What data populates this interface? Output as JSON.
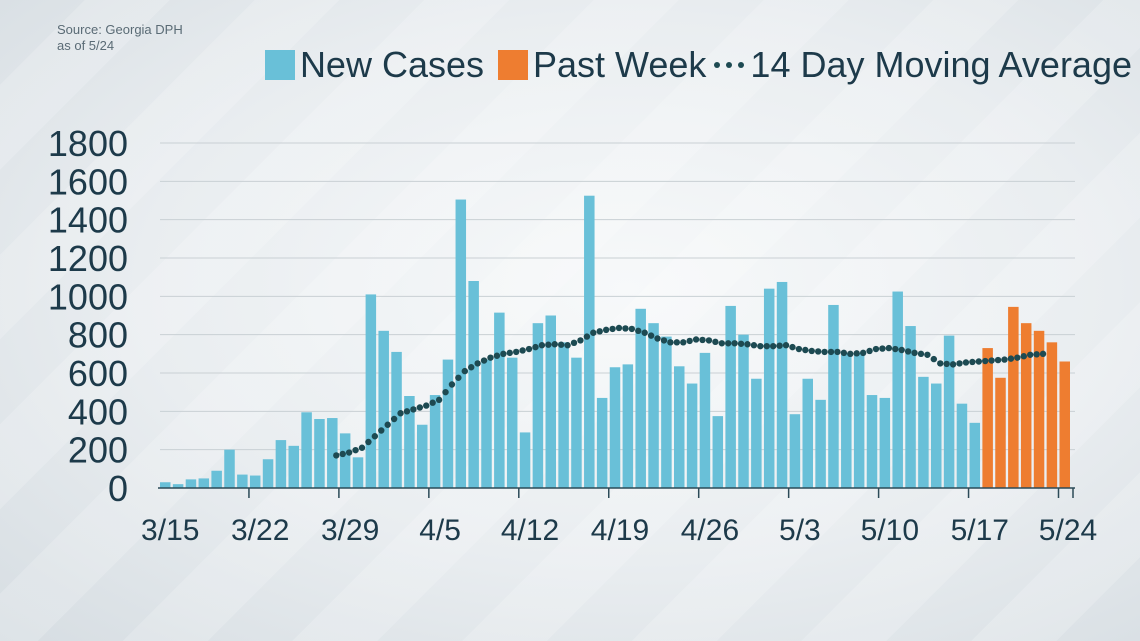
{
  "source": {
    "line1": "Source: Georgia DPH",
    "line2": "as of 5/24"
  },
  "legend": {
    "new_cases": "New Cases",
    "past_week": "Past Week",
    "moving_avg": "14 Day Moving Average"
  },
  "colors": {
    "new_cases": "#69c0d8",
    "past_week": "#ee7d30",
    "moving_avg": "#1d4a52",
    "axis_text": "#1d3a4a",
    "grid": "#c9d0d4"
  },
  "chart_data": {
    "type": "bar",
    "title": "",
    "xlabel": "",
    "ylabel": "",
    "ylim": [
      0,
      1800
    ],
    "y_ticks": [
      "0",
      "200",
      "400",
      "600",
      "800",
      "1000",
      "1200",
      "1400",
      "1600",
      "1800"
    ],
    "x_tick_labels": [
      "3/15",
      "3/22",
      "3/29",
      "4/5",
      "4/12",
      "4/19",
      "4/26",
      "5/3",
      "5/10",
      "5/17",
      "5/24"
    ],
    "start_date": "3/15",
    "series": [
      {
        "name": "New Cases",
        "values": [
          30,
          20,
          45,
          50,
          90,
          200,
          70,
          65,
          150,
          250,
          220,
          395,
          360,
          365,
          285,
          160,
          1010,
          820,
          710,
          480,
          330,
          485,
          670,
          1505,
          1080,
          670,
          915,
          680,
          290,
          860,
          900,
          760,
          680,
          1525,
          470,
          630,
          645,
          935,
          860,
          790,
          635,
          545,
          705,
          375,
          950,
          800,
          570,
          1040,
          1075,
          385,
          570,
          460,
          955,
          705,
          705,
          485,
          470,
          1025,
          845,
          580,
          545,
          795,
          440,
          340
        ]
      },
      {
        "name": "Past Week",
        "values": [
          730,
          575,
          945,
          860,
          820,
          760,
          660
        ]
      },
      {
        "name": "14 Day Moving Average",
        "start_index": 13,
        "values": [
          170,
          185,
          210,
          270,
          330,
          390,
          410,
          430,
          460,
          540,
          610,
          650,
          680,
          700,
          710,
          725,
          745,
          750,
          745,
          770,
          810,
          825,
          835,
          830,
          810,
          780,
          760,
          760,
          775,
          770,
          755,
          755,
          750,
          740,
          740,
          745,
          725,
          715,
          710,
          710,
          700,
          705,
          725,
          730,
          720,
          705,
          695,
          650,
          645,
          655,
          660,
          665,
          670,
          680,
          695,
          700
        ]
      }
    ]
  }
}
